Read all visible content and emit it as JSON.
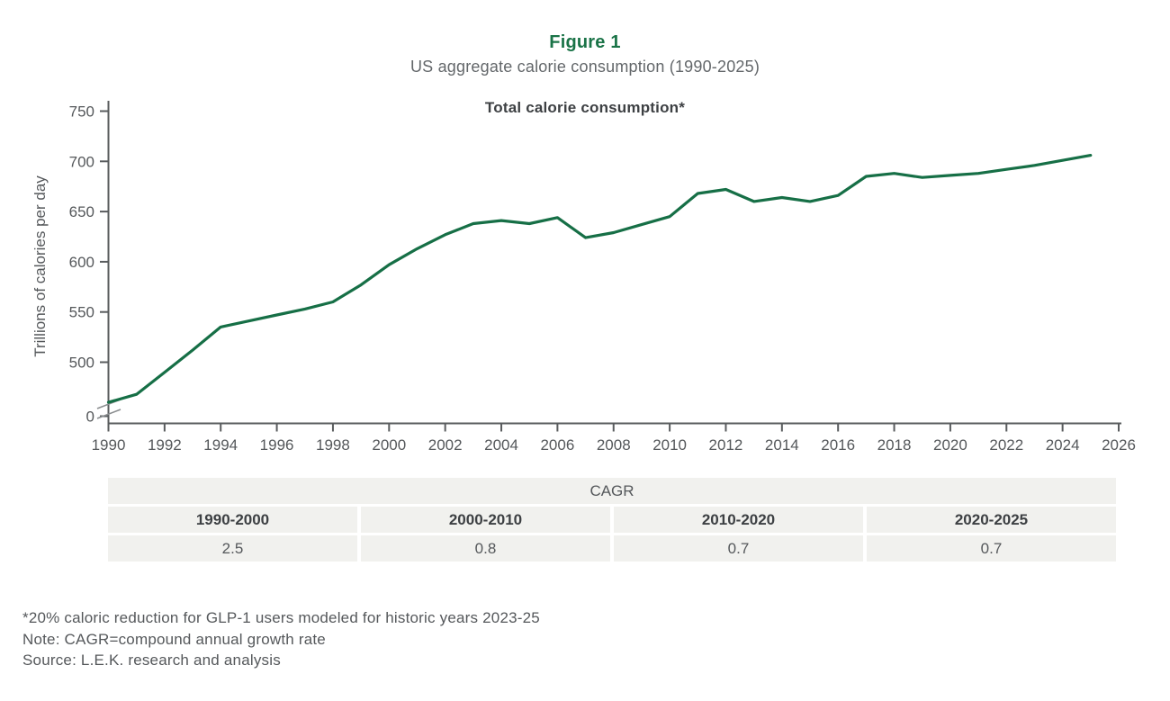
{
  "figure": {
    "label": "Figure 1",
    "subtitle": "US aggregate calorie consumption (1990-2025)",
    "chart_title": "Total calorie consumption*"
  },
  "chart_data": {
    "type": "line",
    "title": "Total calorie consumption*",
    "xlabel": "",
    "ylabel": "Trillions of calories per day",
    "x": [
      1990,
      1991,
      1992,
      1993,
      1994,
      1995,
      1996,
      1997,
      1998,
      1999,
      2000,
      2001,
      2002,
      2003,
      2004,
      2005,
      2006,
      2007,
      2008,
      2009,
      2010,
      2011,
      2012,
      2013,
      2014,
      2015,
      2016,
      2017,
      2018,
      2019,
      2020,
      2021,
      2022,
      2023,
      2024,
      2025
    ],
    "values": [
      460,
      468,
      490,
      512,
      535,
      541,
      547,
      553,
      560,
      577,
      597,
      613,
      627,
      638,
      641,
      638,
      644,
      624,
      629,
      637,
      645,
      668,
      672,
      660,
      664,
      660,
      666,
      685,
      688,
      684,
      686,
      688,
      692,
      696,
      701,
      706
    ],
    "x_tick_labels": [
      1990,
      1992,
      1994,
      1996,
      1998,
      2000,
      2002,
      2004,
      2006,
      2008,
      2010,
      2012,
      2014,
      2016,
      2018,
      2020,
      2022,
      2024,
      2026
    ],
    "y_tick_labels": [
      0,
      500,
      550,
      600,
      650,
      700,
      750
    ],
    "y_axis_break": true,
    "xlim": [
      1990,
      2026
    ],
    "ylim": [
      0,
      750
    ],
    "grid": false,
    "legend": "none",
    "line_color": "#166f46",
    "axis_color": "#595c5e",
    "break_mark_color": "#8a8d8f",
    "tick_label_color": "#55585b"
  },
  "table": {
    "header": "CAGR",
    "columns": [
      {
        "period": "1990-2000",
        "value": "2.5"
      },
      {
        "period": "2000-2010",
        "value": "0.8"
      },
      {
        "period": "2010-2020",
        "value": "0.7"
      },
      {
        "period": "2020-2025",
        "value": "0.7"
      }
    ]
  },
  "footnotes": [
    "*20% caloric reduction for GLP-1 users modeled for historic years 2023-25",
    "Note: CAGR=compound annual growth rate",
    "Source: L.E.K. research and analysis"
  ]
}
